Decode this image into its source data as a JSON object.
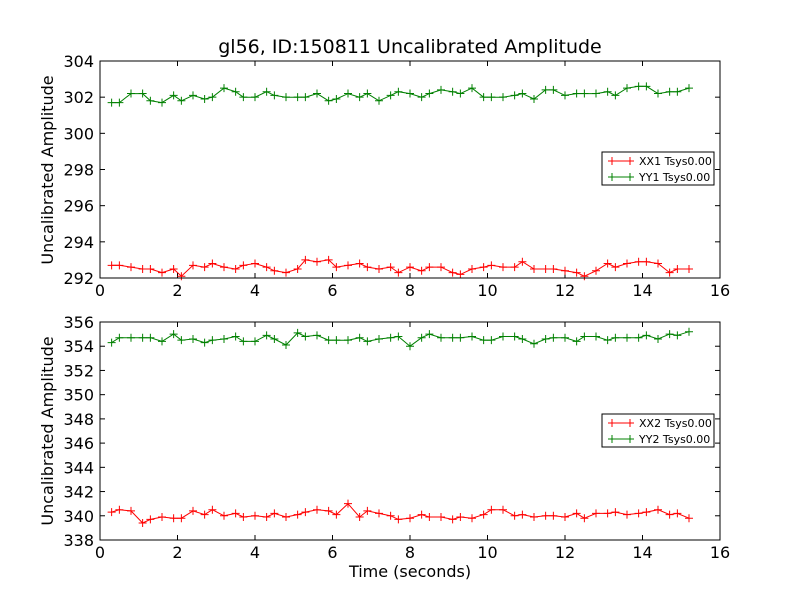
{
  "chart_data": [
    {
      "type": "line",
      "title": "gl56, ID:150811 Uncalibrated Amplitude",
      "xlabel": "",
      "ylabel": "Uncalibrated Amplitude",
      "xlim": [
        0,
        16
      ],
      "ylim": [
        292,
        304
      ],
      "xticks": [
        0,
        2,
        4,
        6,
        8,
        10,
        12,
        14,
        16
      ],
      "yticks": [
        292,
        294,
        296,
        298,
        300,
        302,
        304
      ],
      "legend_position": "center-right",
      "series": [
        {
          "name": "XX1 Tsys0.00",
          "color": "#ff0000",
          "x": [
            0.3,
            0.5,
            0.8,
            1.1,
            1.3,
            1.6,
            1.9,
            2.1,
            2.4,
            2.7,
            2.9,
            3.2,
            3.5,
            3.7,
            4.0,
            4.3,
            4.5,
            4.8,
            5.1,
            5.3,
            5.6,
            5.9,
            6.1,
            6.4,
            6.7,
            6.9,
            7.2,
            7.5,
            7.7,
            8.0,
            8.3,
            8.5,
            8.8,
            9.1,
            9.3,
            9.6,
            9.9,
            10.1,
            10.4,
            10.7,
            10.9,
            11.2,
            11.5,
            11.7,
            12.0,
            12.3,
            12.5,
            12.8,
            13.1,
            13.3,
            13.6,
            13.9,
            14.1,
            14.4,
            14.7,
            14.9,
            15.2
          ],
          "values": [
            292.7,
            292.7,
            292.6,
            292.5,
            292.5,
            292.3,
            292.5,
            292.1,
            292.7,
            292.6,
            292.8,
            292.6,
            292.5,
            292.7,
            292.8,
            292.6,
            292.4,
            292.3,
            292.5,
            293.0,
            292.9,
            293.0,
            292.6,
            292.7,
            292.8,
            292.6,
            292.5,
            292.6,
            292.3,
            292.6,
            292.4,
            292.6,
            292.6,
            292.3,
            292.2,
            292.5,
            292.6,
            292.7,
            292.6,
            292.6,
            292.9,
            292.5,
            292.5,
            292.5,
            292.4,
            292.3,
            292.1,
            292.4,
            292.8,
            292.6,
            292.8,
            292.9,
            292.9,
            292.8,
            292.3,
            292.5,
            292.5
          ]
        },
        {
          "name": "YY1 Tsys0.00",
          "color": "#008000",
          "x": [
            0.3,
            0.5,
            0.8,
            1.1,
            1.3,
            1.6,
            1.9,
            2.1,
            2.4,
            2.7,
            2.9,
            3.2,
            3.5,
            3.7,
            4.0,
            4.3,
            4.5,
            4.8,
            5.1,
            5.3,
            5.6,
            5.9,
            6.1,
            6.4,
            6.7,
            6.9,
            7.2,
            7.5,
            7.7,
            8.0,
            8.3,
            8.5,
            8.8,
            9.1,
            9.3,
            9.6,
            9.9,
            10.1,
            10.4,
            10.7,
            10.9,
            11.2,
            11.5,
            11.7,
            12.0,
            12.3,
            12.5,
            12.8,
            13.1,
            13.3,
            13.6,
            13.9,
            14.1,
            14.4,
            14.7,
            14.9,
            15.2
          ],
          "values": [
            301.7,
            301.7,
            302.2,
            302.2,
            301.8,
            301.7,
            302.1,
            301.8,
            302.1,
            301.9,
            302.0,
            302.5,
            302.3,
            302.0,
            302.0,
            302.3,
            302.1,
            302.0,
            302.0,
            302.0,
            302.2,
            301.8,
            301.9,
            302.2,
            302.0,
            302.2,
            301.8,
            302.1,
            302.3,
            302.2,
            302.0,
            302.2,
            302.4,
            302.3,
            302.2,
            302.5,
            302.0,
            302.0,
            302.0,
            302.1,
            302.2,
            301.9,
            302.4,
            302.4,
            302.1,
            302.2,
            302.2,
            302.2,
            302.3,
            302.1,
            302.5,
            302.6,
            302.6,
            302.2,
            302.3,
            302.3,
            302.5
          ]
        }
      ]
    },
    {
      "type": "line",
      "title": "",
      "xlabel": "Time (seconds)",
      "ylabel": "Uncalibrated Amplitude",
      "xlim": [
        0,
        16
      ],
      "ylim": [
        338,
        356
      ],
      "xticks": [
        0,
        2,
        4,
        6,
        8,
        10,
        12,
        14,
        16
      ],
      "yticks": [
        338,
        340,
        342,
        344,
        346,
        348,
        350,
        352,
        354,
        356
      ],
      "legend_position": "center-right",
      "series": [
        {
          "name": "XX2 Tsys0.00",
          "color": "#ff0000",
          "x": [
            0.3,
            0.5,
            0.8,
            1.1,
            1.3,
            1.6,
            1.9,
            2.1,
            2.4,
            2.7,
            2.9,
            3.2,
            3.5,
            3.7,
            4.0,
            4.3,
            4.5,
            4.8,
            5.1,
            5.3,
            5.6,
            5.9,
            6.1,
            6.4,
            6.7,
            6.9,
            7.2,
            7.5,
            7.7,
            8.0,
            8.3,
            8.5,
            8.8,
            9.1,
            9.3,
            9.6,
            9.9,
            10.1,
            10.4,
            10.7,
            10.9,
            11.2,
            11.5,
            11.7,
            12.0,
            12.3,
            12.5,
            12.8,
            13.1,
            13.3,
            13.6,
            13.9,
            14.1,
            14.4,
            14.7,
            14.9,
            15.2
          ],
          "values": [
            340.3,
            340.5,
            340.4,
            339.4,
            339.7,
            339.9,
            339.8,
            339.8,
            340.4,
            340.1,
            340.5,
            340.0,
            340.2,
            339.9,
            340.0,
            339.9,
            340.2,
            339.9,
            340.1,
            340.3,
            340.5,
            340.4,
            340.1,
            341.0,
            339.9,
            340.4,
            340.2,
            340.0,
            339.7,
            339.8,
            340.1,
            339.9,
            339.9,
            339.7,
            339.9,
            339.8,
            340.1,
            340.5,
            340.5,
            340.0,
            340.1,
            339.9,
            340.0,
            340.0,
            339.9,
            340.2,
            339.8,
            340.2,
            340.2,
            340.3,
            340.1,
            340.2,
            340.3,
            340.5,
            340.1,
            340.2,
            339.8
          ]
        },
        {
          "name": "YY2 Tsys0.00",
          "color": "#008000",
          "x": [
            0.3,
            0.5,
            0.8,
            1.1,
            1.3,
            1.6,
            1.9,
            2.1,
            2.4,
            2.7,
            2.9,
            3.2,
            3.5,
            3.7,
            4.0,
            4.3,
            4.5,
            4.8,
            5.1,
            5.3,
            5.6,
            5.9,
            6.1,
            6.4,
            6.7,
            6.9,
            7.2,
            7.5,
            7.7,
            8.0,
            8.3,
            8.5,
            8.8,
            9.1,
            9.3,
            9.6,
            9.9,
            10.1,
            10.4,
            10.7,
            10.9,
            11.2,
            11.5,
            11.7,
            12.0,
            12.3,
            12.5,
            12.8,
            13.1,
            13.3,
            13.6,
            13.9,
            14.1,
            14.4,
            14.7,
            14.9,
            15.2
          ],
          "values": [
            354.3,
            354.7,
            354.7,
            354.7,
            354.7,
            354.4,
            355.0,
            354.5,
            354.6,
            354.3,
            354.5,
            354.6,
            354.8,
            354.4,
            354.4,
            354.9,
            354.6,
            354.1,
            355.1,
            354.8,
            354.9,
            354.5,
            354.5,
            354.5,
            354.7,
            354.4,
            354.6,
            354.7,
            354.8,
            354.0,
            354.7,
            355.0,
            354.7,
            354.7,
            354.7,
            354.8,
            354.5,
            354.5,
            354.8,
            354.8,
            354.6,
            354.2,
            354.6,
            354.7,
            354.7,
            354.4,
            354.8,
            354.8,
            354.5,
            354.7,
            354.7,
            354.7,
            354.9,
            354.6,
            355.0,
            354.9,
            355.2
          ]
        }
      ]
    }
  ]
}
